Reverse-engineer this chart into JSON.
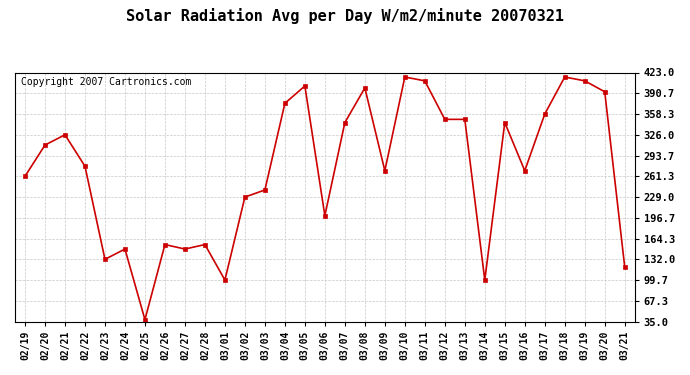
{
  "title": "Solar Radiation Avg per Day W/m2/minute 20070321",
  "copyright": "Copyright 2007 Cartronics.com",
  "x_labels": [
    "02/19",
    "02/20",
    "02/21",
    "02/22",
    "02/23",
    "02/24",
    "02/25",
    "02/26",
    "02/27",
    "02/28",
    "03/01",
    "03/02",
    "03/03",
    "03/04",
    "03/05",
    "03/06",
    "03/07",
    "03/08",
    "03/09",
    "03/10",
    "03/11",
    "03/12",
    "03/13",
    "03/14",
    "03/15",
    "03/16",
    "03/17",
    "03/18",
    "03/19",
    "03/20",
    "03/21"
  ],
  "y_values": [
    261.3,
    310.0,
    326.0,
    277.0,
    132.0,
    148.0,
    38.0,
    155.0,
    148.0,
    155.0,
    99.7,
    229.0,
    240.0,
    375.0,
    402.0,
    200.0,
    345.0,
    399.0,
    270.0,
    416.0,
    410.0,
    350.0,
    350.0,
    99.7,
    345.0,
    270.0,
    358.3,
    416.0,
    410.0,
    393.0,
    120.0
  ],
  "y_ticks": [
    35.0,
    67.3,
    99.7,
    132.0,
    164.3,
    196.7,
    229.0,
    261.3,
    293.7,
    326.0,
    358.3,
    390.7,
    423.0
  ],
  "ylim": [
    35.0,
    423.0
  ],
  "line_color": "#cc0000",
  "marker_color": "#cc0000",
  "bg_color": "#ffffff",
  "plot_bg_color": "#ffffff",
  "grid_color": "#c8c8c8",
  "title_fontsize": 11,
  "copyright_fontsize": 7,
  "tick_fontsize": 7,
  "ytick_fontsize": 7.5
}
